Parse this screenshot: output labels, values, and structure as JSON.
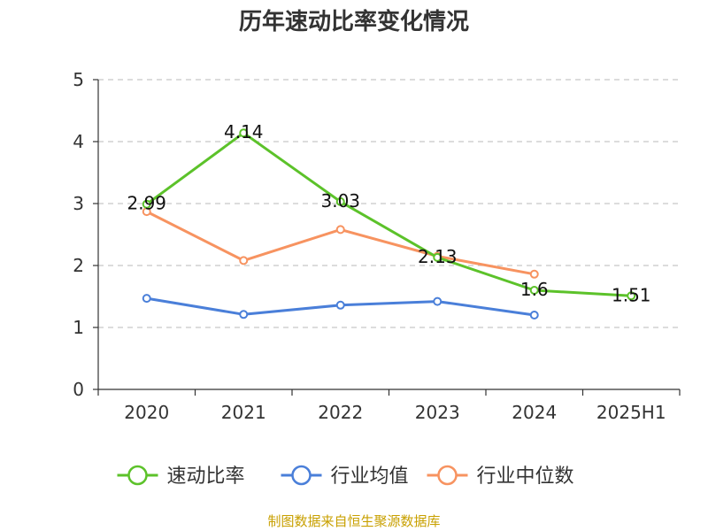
{
  "chart_data": {
    "type": "line",
    "title": "历年速动比率变化情况",
    "categories": [
      "2020",
      "2021",
      "2022",
      "2023",
      "2024",
      "2025H1"
    ],
    "ylim": [
      0,
      5
    ],
    "yticks": [
      "0",
      "1",
      "2",
      "3",
      "4",
      "5"
    ],
    "grid": true,
    "legend_position": "bottom",
    "series": [
      {
        "name": "速动比率",
        "color": "#5cc22a",
        "values": [
          2.99,
          4.14,
          3.03,
          2.13,
          1.6,
          1.51
        ],
        "labels": [
          "2.99",
          "4.14",
          "3.03",
          "2.13",
          "1.6",
          "1.51"
        ]
      },
      {
        "name": "行业均值",
        "color": "#4a7fd9",
        "values": [
          1.47,
          1.21,
          1.36,
          1.42,
          1.2,
          null
        ]
      },
      {
        "name": "行业中位数",
        "color": "#f79360",
        "values": [
          2.87,
          2.08,
          2.58,
          2.15,
          1.86,
          null
        ]
      }
    ],
    "source": "制图数据来自恒生聚源数据库"
  }
}
